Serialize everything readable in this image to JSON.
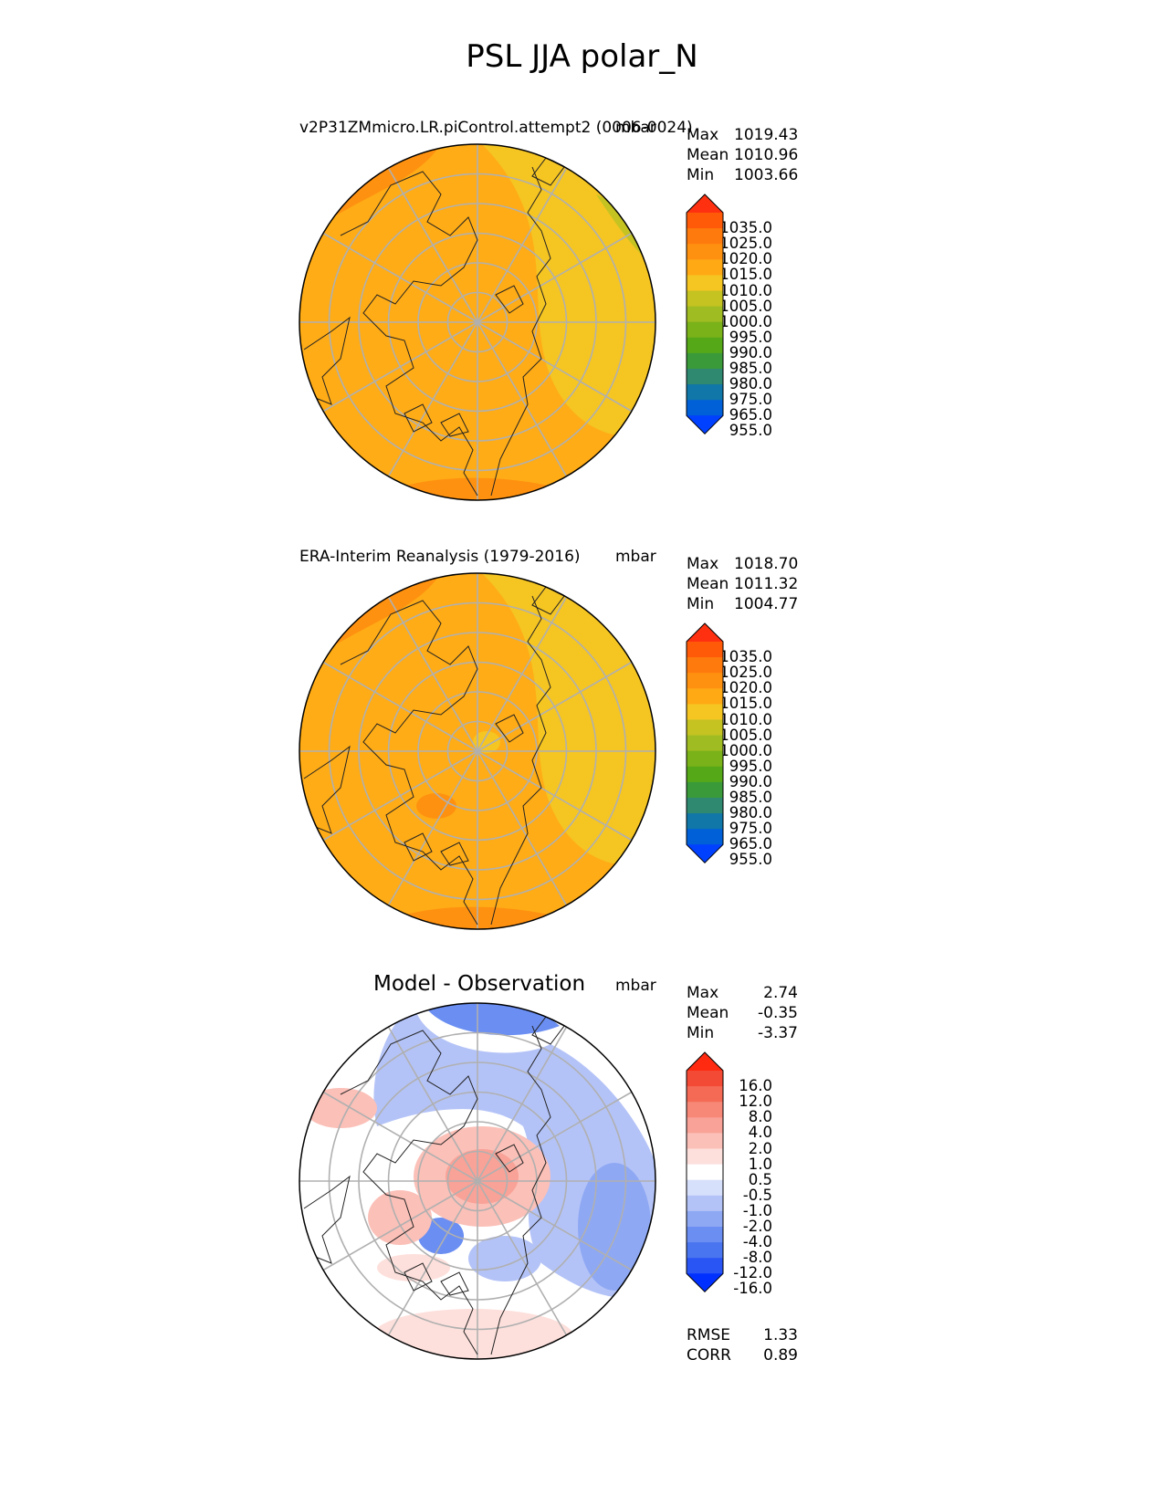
{
  "title": "PSL JJA polar_N",
  "panels": [
    {
      "title": "v2P31ZMmicro.LR.piControl.attempt2 (0006-0024)",
      "units": "mbar",
      "stats": [
        {
          "label": "Max",
          "value": "1019.43"
        },
        {
          "label": "Mean",
          "value": "1010.96"
        },
        {
          "label": "Min",
          "value": "1003.66"
        }
      ],
      "colorbar_labels": [
        "1035.0",
        "1025.0",
        "1020.0",
        "1015.0",
        "1010.0",
        "1005.0",
        "1000.0",
        "995.0",
        "990.0",
        "985.0",
        "980.0",
        "975.0",
        "965.0",
        "955.0"
      ]
    },
    {
      "title": "ERA-Interim Reanalysis (1979-2016)",
      "units": "mbar",
      "stats": [
        {
          "label": "Max",
          "value": "1018.70"
        },
        {
          "label": "Mean",
          "value": "1011.32"
        },
        {
          "label": "Min",
          "value": "1004.77"
        }
      ],
      "colorbar_labels": [
        "1035.0",
        "1025.0",
        "1020.0",
        "1015.0",
        "1010.0",
        "1005.0",
        "1000.0",
        "995.0",
        "990.0",
        "985.0",
        "980.0",
        "975.0",
        "965.0",
        "955.0"
      ]
    },
    {
      "title": "Model - Observation",
      "units": "mbar",
      "stats": [
        {
          "label": "Max",
          "value": "2.74"
        },
        {
          "label": "Mean",
          "value": "-0.35"
        },
        {
          "label": "Min",
          "value": "-3.37"
        }
      ],
      "colorbar_labels": [
        "16.0",
        "12.0",
        "8.0",
        "4.0",
        "2.0",
        "1.0",
        "0.5",
        "-0.5",
        "-1.0",
        "-2.0",
        "-4.0",
        "-8.0",
        "-12.0",
        "-16.0"
      ],
      "metrics": [
        {
          "label": "RMSE",
          "value": "1.33"
        },
        {
          "label": "CORR",
          "value": "0.89"
        }
      ]
    }
  ],
  "colors": {
    "abs_colormap": [
      "#0040ff",
      "#0060d8",
      "#1077a8",
      "#2f8870",
      "#3a9a3a",
      "#55a818",
      "#7ab21a",
      "#9fbc22",
      "#c4c322",
      "#f5c522",
      "#ffa915",
      "#ff9110",
      "#ff7a0c",
      "#ff5a08",
      "#ff3010"
    ],
    "diff_colormap": [
      "#0030ff",
      "#2a55f5",
      "#4a75f0",
      "#6a8ef2",
      "#8ea8f4",
      "#b4c3f7",
      "#d7e0fb",
      "#ffffff",
      "#fde0dc",
      "#fbc0b8",
      "#f9a297",
      "#f78777",
      "#f46a55",
      "#f24a35",
      "#ff2a10"
    ],
    "abs_background": "#ffac16",
    "diff_background": "#ffffff",
    "graticule": "#b0b0b0",
    "coastline": "#222222"
  }
}
